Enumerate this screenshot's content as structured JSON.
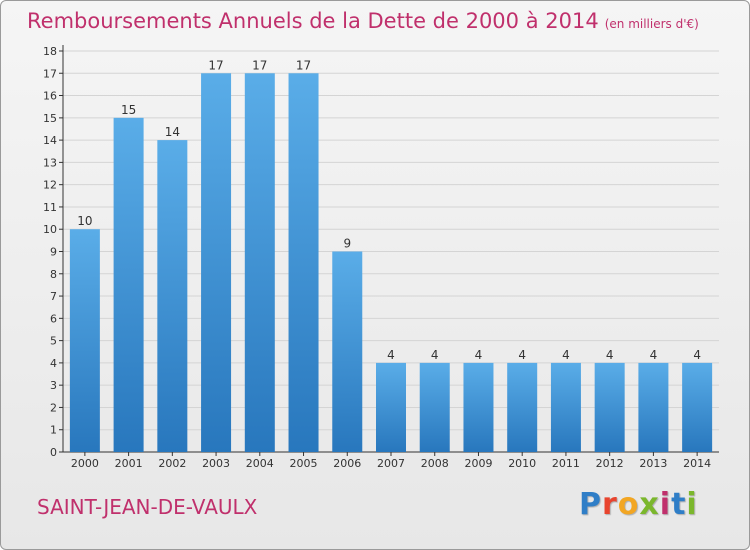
{
  "header": {
    "title": "Remboursements Annuels de la Dette de 2000 à 2014",
    "unit": "(en milliers d'€)"
  },
  "footer": {
    "commune": "SAINT-JEAN-DE-VAULX",
    "brand_letters": [
      "P",
      "r",
      "o",
      "x",
      "i",
      "t",
      "i"
    ],
    "brand_colors": [
      "#2f7ec7",
      "#e8442e",
      "#f2a623",
      "#7bb72c",
      "#c0306c",
      "#2f7ec7",
      "#7bb72c"
    ]
  },
  "colors": {
    "bar_top": "#5aade8",
    "bar_bottom": "#2877bd",
    "axis": "#333333",
    "grid": "#d4d4d4",
    "accent": "#c0306c"
  },
  "chart_data": {
    "type": "bar",
    "categories": [
      "2000",
      "2001",
      "2002",
      "2003",
      "2004",
      "2005",
      "2006",
      "2007",
      "2008",
      "2009",
      "2010",
      "2011",
      "2012",
      "2013",
      "2014"
    ],
    "values": [
      10,
      15,
      14,
      17,
      17,
      17,
      9,
      4,
      4,
      4,
      4,
      4,
      4,
      4,
      4
    ],
    "data_labels": [
      "10",
      "15",
      "14",
      "17",
      "17",
      "17",
      "9",
      "4",
      "4",
      "4",
      "4",
      "4",
      "4",
      "4",
      "4"
    ],
    "y_ticks": [
      "0",
      "1",
      "2",
      "3",
      "4",
      "5",
      "6",
      "7",
      "8",
      "9",
      "10",
      "11",
      "12",
      "13",
      "14",
      "15",
      "16",
      "17",
      "18"
    ],
    "ylim": [
      0,
      18
    ],
    "grid": true,
    "title": "Remboursements Annuels de la Dette de 2000 à 2014",
    "xlabel": "",
    "ylabel": ""
  }
}
